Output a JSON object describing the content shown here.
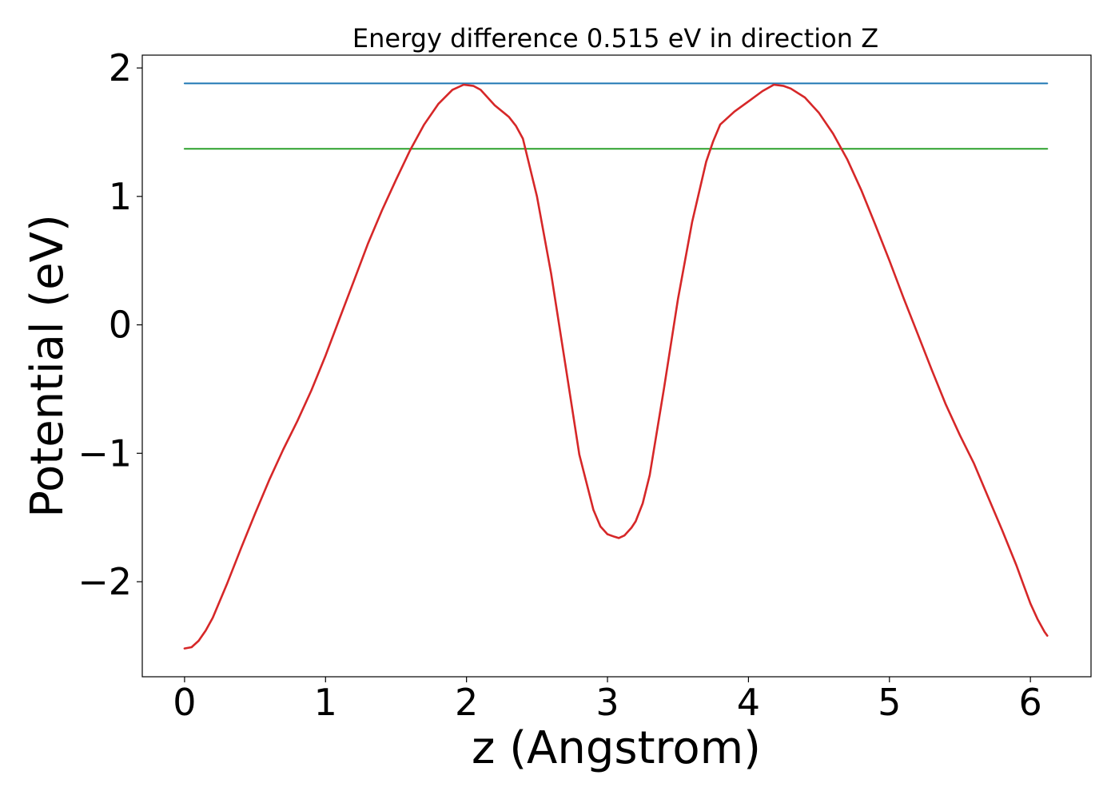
{
  "chart_data": {
    "type": "line",
    "title": "Energy difference 0.515 eV in direction Z",
    "xlabel": "z (Angstrom)",
    "ylabel": "Potential (eV)",
    "xlim": [
      -0.3,
      6.43
    ],
    "ylim": [
      -2.74,
      2.1
    ],
    "xticks": [
      {
        "value": 0,
        "label": "0"
      },
      {
        "value": 1,
        "label": "1"
      },
      {
        "value": 2,
        "label": "2"
      },
      {
        "value": 3,
        "label": "3"
      },
      {
        "value": 4,
        "label": "4"
      },
      {
        "value": 5,
        "label": "5"
      },
      {
        "value": 6,
        "label": "6"
      }
    ],
    "yticks": [
      {
        "value": -2,
        "label": "−2"
      },
      {
        "value": -1,
        "label": "−1"
      },
      {
        "value": 0,
        "label": "0"
      },
      {
        "value": 1,
        "label": "1"
      },
      {
        "value": 2,
        "label": "2"
      }
    ],
    "grid": false,
    "series": [
      {
        "color": "#1f77b4",
        "x": [
          0,
          6.12
        ],
        "y": [
          1.88,
          1.88
        ]
      },
      {
        "color": "#2ca02c",
        "x": [
          0,
          6.12
        ],
        "y": [
          1.37,
          1.37
        ]
      },
      {
        "color": "#d62728",
        "x": [
          0,
          0.05,
          0.1,
          0.15,
          0.2,
          0.3,
          0.4,
          0.5,
          0.6,
          0.7,
          0.8,
          0.9,
          1.0,
          1.1,
          1.2,
          1.3,
          1.4,
          1.5,
          1.6,
          1.7,
          1.8,
          1.9,
          1.98,
          2.05,
          2.1,
          2.2,
          2.3,
          2.35,
          2.4,
          2.5,
          2.6,
          2.7,
          2.8,
          2.9,
          2.95,
          3.0,
          3.05,
          3.08,
          3.12,
          3.17,
          3.2,
          3.25,
          3.3,
          3.4,
          3.5,
          3.6,
          3.7,
          3.75,
          3.8,
          3.9,
          4.0,
          4.1,
          4.18,
          4.25,
          4.3,
          4.4,
          4.5,
          4.6,
          4.7,
          4.8,
          4.9,
          5.0,
          5.1,
          5.2,
          5.3,
          5.4,
          5.5,
          5.6,
          5.7,
          5.8,
          5.9,
          5.95,
          6.0,
          6.05,
          6.1,
          6.12
        ],
        "y": [
          -2.52,
          -2.51,
          -2.46,
          -2.38,
          -2.28,
          -2.02,
          -1.74,
          -1.47,
          -1.21,
          -0.97,
          -0.75,
          -0.51,
          -0.24,
          0.05,
          0.34,
          0.63,
          0.89,
          1.13,
          1.36,
          1.56,
          1.72,
          1.83,
          1.87,
          1.86,
          1.83,
          1.71,
          1.62,
          1.55,
          1.45,
          1.0,
          0.4,
          -0.3,
          -1.01,
          -1.44,
          -1.57,
          -1.63,
          -1.65,
          -1.66,
          -1.64,
          -1.58,
          -1.53,
          -1.39,
          -1.17,
          -0.5,
          0.2,
          0.8,
          1.27,
          1.43,
          1.56,
          1.66,
          1.74,
          1.82,
          1.87,
          1.86,
          1.84,
          1.77,
          1.65,
          1.49,
          1.29,
          1.05,
          0.78,
          0.5,
          0.21,
          -0.07,
          -0.35,
          -0.62,
          -0.86,
          -1.08,
          -1.34,
          -1.6,
          -1.87,
          -2.02,
          -2.17,
          -2.29,
          -2.39,
          -2.42
        ]
      }
    ]
  }
}
